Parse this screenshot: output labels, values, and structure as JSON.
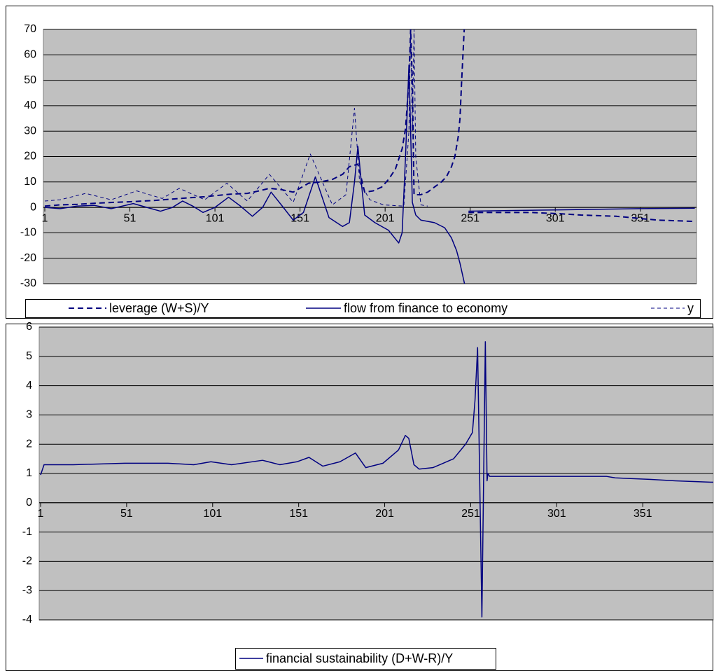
{
  "chart_data": [
    {
      "type": "line",
      "xlim": [
        1,
        384
      ],
      "xticks": [
        1,
        51,
        101,
        151,
        201,
        251,
        301,
        351
      ],
      "ylim": [
        -30,
        70
      ],
      "yticks": [
        -30,
        -20,
        -10,
        0,
        10,
        20,
        30,
        40,
        50,
        60,
        70
      ],
      "grid": true,
      "series": [
        {
          "name": "leverage (W+S)/Y",
          "color": "#000080",
          "line_style": "dashed",
          "line_width": 2,
          "x": [
            1,
            10,
            20,
            35,
            50,
            65,
            80,
            95,
            110,
            120,
            127,
            133,
            140,
            147,
            156,
            163,
            170,
            176,
            180,
            185,
            189,
            194,
            199,
            203,
            207,
            211,
            213,
            215,
            216,
            217,
            218,
            222,
            226,
            230,
            234,
            237,
            240,
            242,
            244,
            245,
            246,
            247.5,
            249,
            250,
            287,
            304,
            316,
            337,
            345,
            361,
            382
          ],
          "values": [
            0.5,
            1,
            1.2,
            1.8,
            2.2,
            2.7,
            3.5,
            4.2,
            5.2,
            5.5,
            6.5,
            7.5,
            7,
            6,
            9.5,
            10,
            11,
            13,
            16,
            17,
            6,
            6.5,
            8,
            11,
            15,
            23,
            31,
            50,
            70,
            50,
            5,
            5,
            6,
            8,
            10,
            12,
            16,
            20,
            28,
            35,
            50,
            70,
            null,
            -2,
            -2,
            -2.5,
            -3,
            -3.5,
            -4,
            -5,
            -5.5
          ]
        },
        {
          "name": "flow from finance to economy",
          "color": "#000080",
          "line_style": "solid",
          "line_width": 1.5,
          "x": [
            1,
            10,
            20,
            30,
            40,
            53,
            61,
            69,
            76,
            82,
            88,
            94,
            101,
            109,
            116,
            123,
            129,
            134,
            140,
            147,
            153,
            160,
            168,
            176,
            180,
            183,
            185,
            187,
            189,
            195,
            203,
            209,
            211,
            213,
            215,
            216,
            217,
            219,
            222,
            230,
            236,
            240,
            243,
            245,
            247,
            248,
            249,
            250,
            300,
            350,
            383
          ],
          "values": [
            0,
            -0.5,
            0.5,
            0.8,
            -0.5,
            1.5,
            0,
            -1.5,
            0,
            2.5,
            0.5,
            -2,
            0,
            4,
            0.5,
            -3.5,
            0,
            6,
            1,
            -5,
            -2,
            12,
            -4,
            -7.5,
            -6,
            10,
            24,
            10,
            -3,
            -6,
            -9,
            -14,
            -10,
            20,
            56,
            30,
            2,
            -3,
            -5,
            -6,
            -8,
            -12,
            -17,
            -22,
            -28,
            -31,
            null,
            -1.5,
            -1,
            -0.5,
            -0.3
          ]
        },
        {
          "name": "y",
          "color": "#000080",
          "line_style": "dashed",
          "line_width": 1,
          "x": [
            1,
            10,
            25,
            40,
            55,
            70,
            80,
            95,
            108,
            120,
            133,
            147,
            157,
            170,
            178,
            183,
            186,
            192,
            200,
            212,
            215,
            216,
            217,
            218,
            219,
            222,
            226
          ],
          "values": [
            2.5,
            3,
            5.5,
            3,
            6.5,
            3.5,
            7.5,
            3,
            9.5,
            2.5,
            13,
            2,
            21,
            1,
            5,
            39,
            10,
            3,
            1,
            0.5,
            30,
            70,
            30,
            70,
            20,
            1,
            0.5
          ]
        }
      ]
    },
    {
      "type": "line",
      "xlim": [
        1,
        392
      ],
      "xticks": [
        1,
        51,
        101,
        151,
        201,
        251,
        301,
        351
      ],
      "ylim": [
        -4,
        6
      ],
      "yticks": [
        -4,
        -3,
        -2,
        -1,
        0,
        1,
        2,
        3,
        4,
        5,
        6
      ],
      "grid": true,
      "series": [
        {
          "name": "financial sustainability (D+W-R)/Y",
          "color": "#000080",
          "line_style": "solid",
          "line_width": 1.5,
          "x": [
            1,
            3,
            20,
            50,
            75,
            90,
            100,
            112,
            130,
            140,
            150,
            157,
            165,
            175,
            184,
            190,
            200,
            209,
            213,
            215,
            218,
            221,
            229,
            241,
            248,
            252,
            253.5,
            255,
            257.5,
            259.5,
            260.5,
            261,
            262,
            330,
            335,
            355,
            370,
            392
          ],
          "values": [
            0.95,
            1.3,
            1.3,
            1.35,
            1.35,
            1.3,
            1.4,
            1.3,
            1.45,
            1.3,
            1.4,
            1.55,
            1.25,
            1.4,
            1.7,
            1.2,
            1.35,
            1.8,
            2.3,
            2.2,
            1.3,
            1.15,
            1.2,
            1.5,
            2.0,
            2.4,
            3.5,
            5.3,
            -3.9,
            5.5,
            0.75,
            1.0,
            0.9,
            0.9,
            0.85,
            0.8,
            0.75,
            0.7
          ]
        }
      ]
    }
  ]
}
